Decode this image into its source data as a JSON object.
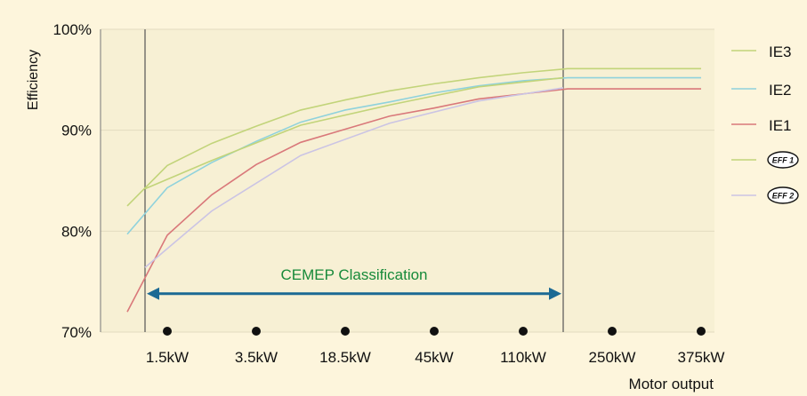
{
  "chart_data": {
    "type": "line",
    "ylabel": "Efficiency",
    "xlabel": "Motor output",
    "categories": [
      "1.5kW",
      "3.5kW",
      "18.5kW",
      "45kW",
      "110kW",
      "250kW",
      "375kW"
    ],
    "ylim": [
      70,
      100
    ],
    "yticks": [
      "70%",
      "80%",
      "90%",
      "100%"
    ],
    "grid": true,
    "legend": "right",
    "x": [
      0.6,
      1.5,
      2.5,
      3.5,
      4.5,
      5.5,
      6.5,
      7.5,
      8.5,
      9.5,
      10.5,
      11.5,
      12.5,
      13.5
    ],
    "series": [
      {
        "name": "IE3",
        "color": "#c2d47a",
        "values": [
          82.5,
          86.5,
          88.7,
          90.4,
          92.0,
          93.0,
          93.9,
          94.6,
          95.2,
          95.7,
          96.1,
          96.1,
          96.1,
          96.1
        ]
      },
      {
        "name": "IE2",
        "color": "#8fd2dc",
        "values": [
          79.7,
          84.3,
          86.8,
          88.9,
          90.8,
          92.0,
          92.8,
          93.7,
          94.4,
          94.9,
          95.2,
          95.2,
          95.2,
          95.2
        ]
      },
      {
        "name": "IE1",
        "color": "#d9787a",
        "values": [
          72.0,
          79.6,
          83.6,
          86.6,
          88.8,
          90.1,
          91.4,
          92.2,
          93.1,
          93.6,
          94.1,
          94.1,
          94.1,
          94.1
        ]
      },
      {
        "name": "",
        "legend_icon": "eff1-icon",
        "legend_text": "EFF 1",
        "color": "#c2d47a",
        "x": [
          1.0,
          2.5,
          4.5,
          6.5,
          8.5,
          10.4
        ],
        "values": [
          84.2,
          87.0,
          90.5,
          92.5,
          94.3,
          95.2
        ]
      },
      {
        "name": "",
        "legend_icon": "eff2-icon",
        "legend_text": "EFF 2",
        "color": "#cbc4e4",
        "x": [
          1.0,
          2.5,
          4.5,
          6.5,
          8.5,
          10.4
        ],
        "values": [
          76.4,
          82.0,
          87.5,
          90.7,
          92.9,
          94.2
        ]
      }
    ],
    "vlines": [
      1.0,
      10.4
    ],
    "annotation": {
      "text": "CEMEP Classification",
      "from": 1.0,
      "to": 10.4,
      "y": 73.8,
      "color": "#1c6a94",
      "text_color": "#178a3a"
    },
    "dots": [
      1.5,
      3.5,
      5.5,
      7.5,
      9.5,
      11.5,
      13.5
    ]
  }
}
